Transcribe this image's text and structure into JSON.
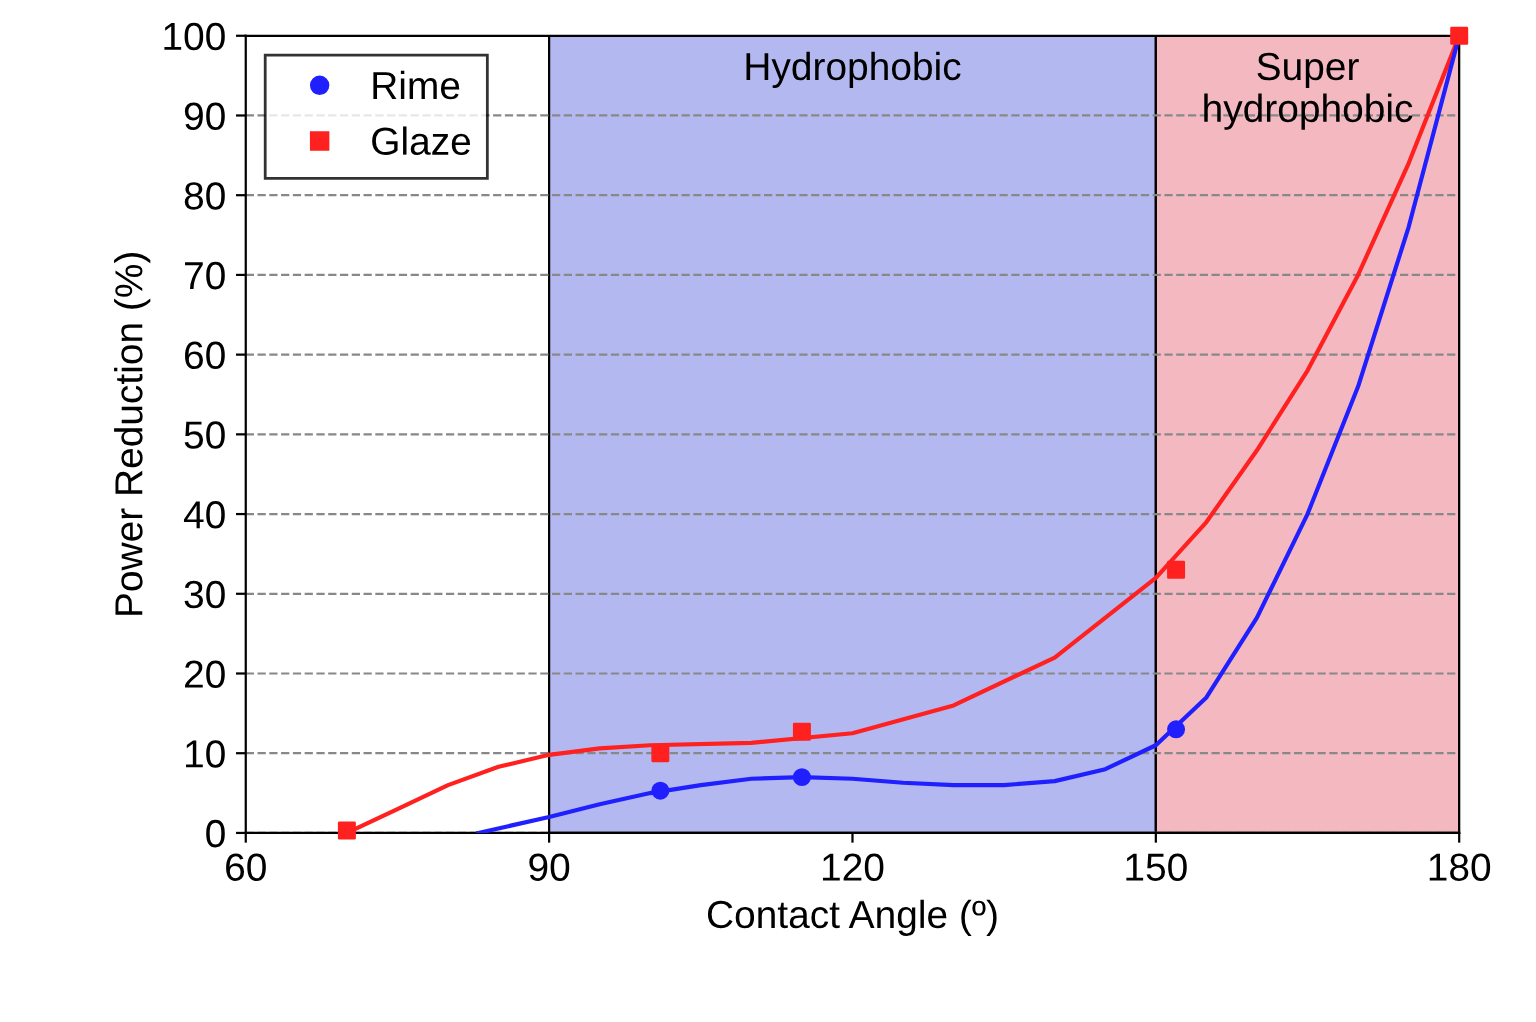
{
  "chart_data": {
    "type": "scatter",
    "xlabel": "Contact Angle (º)",
    "ylabel": "Power Reduction (%)",
    "xlim": [
      60,
      180
    ],
    "xticks": [
      60,
      90,
      120,
      150,
      180
    ],
    "ylim": [
      0,
      100
    ],
    "yticks": [
      0,
      10,
      20,
      30,
      40,
      50,
      60,
      70,
      80,
      90,
      100
    ],
    "grid": "y",
    "legend": "top left",
    "bands": [
      {
        "axis": "x",
        "from": 90,
        "to": 150,
        "label": "Hydrophobic",
        "color": "#b4b8f0"
      },
      {
        "axis": "x",
        "from": 150,
        "to": 180,
        "label": "Super\nhydrophobic",
        "color": "#f4b8c0"
      }
    ],
    "series": [
      {
        "type": "line",
        "color": "#ff2020",
        "x": [
          70,
          75,
          80,
          85,
          90,
          95,
          100,
          110,
          120,
          130,
          140,
          150,
          155,
          160,
          165,
          170,
          175,
          180
        ],
        "values": [
          0,
          3,
          6,
          8.3,
          9.8,
          10.6,
          11,
          11.3,
          12.5,
          16,
          22,
          32,
          39,
          48,
          58,
          70,
          84,
          100
        ]
      },
      {
        "type": "line",
        "color": "#2020ff",
        "x": [
          83,
          90,
          95,
          100,
          105,
          110,
          115,
          120,
          125,
          130,
          135,
          140,
          145,
          150,
          155,
          160,
          165,
          170,
          175,
          180
        ],
        "values": [
          0,
          2,
          3.6,
          5,
          6,
          6.8,
          7,
          6.8,
          6.3,
          6,
          6,
          6.5,
          8,
          11,
          17,
          27,
          40,
          56,
          76,
          100
        ]
      },
      {
        "name": "Rime",
        "marker": "circle",
        "color": "#2020ff",
        "x": [
          101,
          115,
          152
        ],
        "values": [
          5.3,
          7,
          13
        ]
      },
      {
        "name": "Glaze",
        "marker": "square",
        "color": "#ff2020",
        "x": [
          70,
          101,
          115,
          152,
          180
        ],
        "values": [
          0.3,
          10,
          12.7,
          33,
          100
        ]
      }
    ]
  }
}
